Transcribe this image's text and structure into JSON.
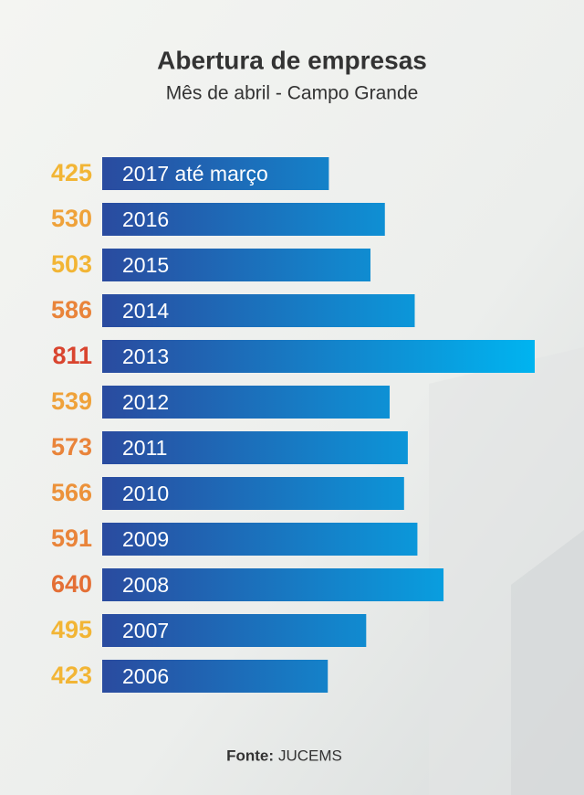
{
  "chart_data": {
    "type": "bar",
    "orientation": "horizontal",
    "title": "Abertura de empresas",
    "subtitle": "Mês de abril - Campo Grande",
    "categories": [
      "2017 até março",
      "2016",
      "2015",
      "2014",
      "2013",
      "2012",
      "2011",
      "2010",
      "2009",
      "2008",
      "2007",
      "2006"
    ],
    "values": [
      425,
      530,
      503,
      586,
      811,
      539,
      573,
      566,
      591,
      640,
      495,
      423
    ],
    "label_colors": [
      "#f2b535",
      "#efa23a",
      "#f2b535",
      "#e9843a",
      "#d9452f",
      "#efa23a",
      "#e9843a",
      "#ec923a",
      "#e9843a",
      "#e46f35",
      "#f2b535",
      "#f2b535"
    ],
    "colors": [
      "#2a4b9f",
      "#00b4f0"
    ],
    "source_label": "Fonte:",
    "source": "JUCEMS"
  }
}
